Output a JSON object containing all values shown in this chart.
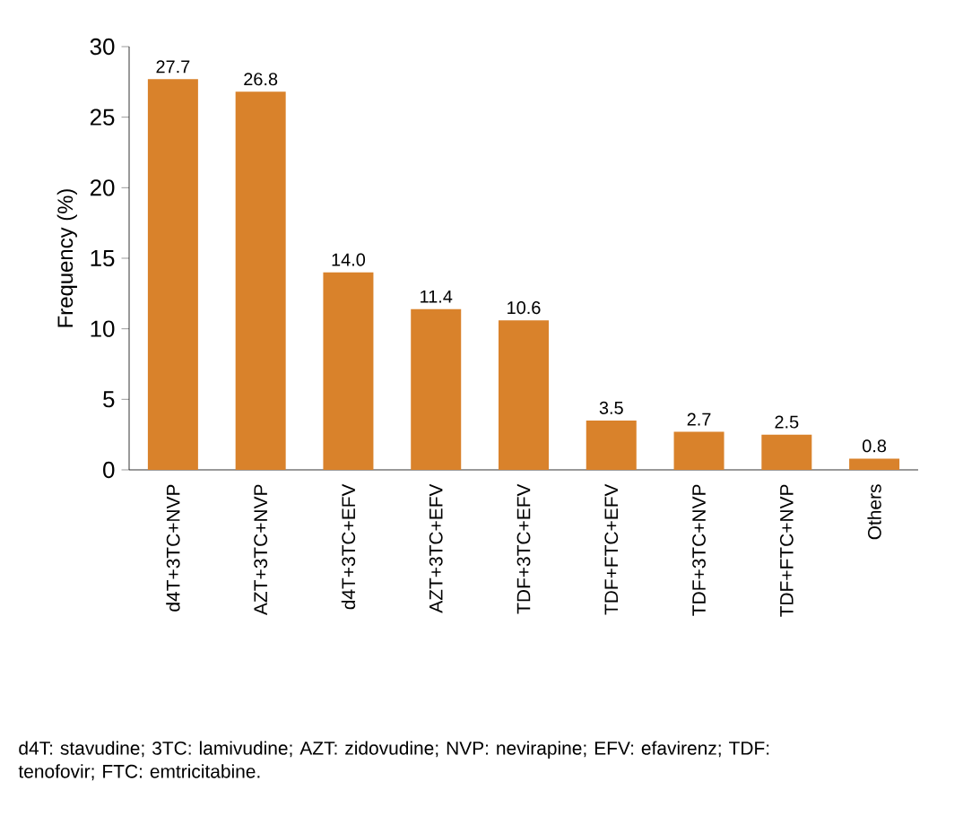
{
  "chart_data": {
    "type": "bar",
    "ylabel": "Frequency (%)",
    "categories": [
      "d4T+3TC+NVP",
      "AZT+3TC+NVP",
      "d4T+3TC+EFV",
      "AZT+3TC+EFV",
      "TDF+3TC+EFV",
      "TDF+FTC+EFV",
      "TDF+3TC+NVP",
      "TDF+FTC+NVP",
      "Others"
    ],
    "values": [
      27.7,
      26.8,
      14.0,
      11.4,
      10.6,
      3.5,
      2.7,
      2.5,
      0.8
    ],
    "value_labels": [
      "27.7",
      "26.8",
      "14.0",
      "11.4",
      "10.6",
      "3.5",
      "2.7",
      "2.5",
      "0.8"
    ],
    "color": "#d9822b",
    "ylim": [
      0,
      30
    ],
    "yticks": [
      0,
      5,
      10,
      15,
      20,
      25,
      30
    ],
    "annotations": [
      "d4T: stavudine; 3TC: lamivudine; AZT: zidovudine; NVP: nevirapine; EFV: efavirenz; TDF: tenofovir; FTC: emtricitabine."
    ]
  }
}
